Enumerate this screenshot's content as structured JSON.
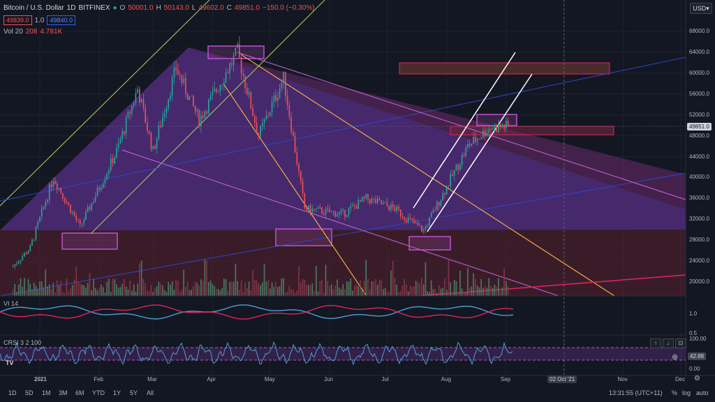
{
  "header": {
    "symbol": "Bitcoin / U.S. Dollar",
    "interval": "1D",
    "exchange": "BITFINEX",
    "open_label": "O",
    "open": "50001.0",
    "high_label": "H",
    "high": "50143.0",
    "low_label": "L",
    "low": "49602.0",
    "close_label": "C",
    "close": "49851.0",
    "change": "−150.0 (−0.30%)",
    "bid": "49839.0",
    "spread": "1.0",
    "ask": "49840.0",
    "vol_label": "Vol 20",
    "vol_value_1": "208",
    "vol_value_2": "4.781K",
    "currency": "USD"
  },
  "price_badge": "49851.0",
  "vi": {
    "label": "VI 14",
    "ticks": [
      "1.0",
      "0.5"
    ]
  },
  "crsi": {
    "label": "CRSI 3 2 100",
    "value": "42.88",
    "ticks": [
      "100.00",
      "0.00"
    ]
  },
  "controls": {
    "up": "↑",
    "down": "↓",
    "expand": "⊡"
  },
  "date_badge": "02 Oct '21",
  "timeframes": [
    "1D",
    "5D",
    "1M",
    "3M",
    "6M",
    "YTD",
    "1Y",
    "5Y",
    "All"
  ],
  "footer": {
    "time": "13:31:55 (UTC+11)",
    "percent": "%",
    "log": "log",
    "auto": "auto"
  },
  "chart_data": {
    "type": "candlestick",
    "symbol": "BTCUSD",
    "interval": "1D",
    "y_scale": "linear",
    "y_ticks": [
      20000,
      24000,
      28000,
      32000,
      36000,
      40000,
      44000,
      48000,
      52000,
      56000,
      60000,
      64000,
      68000
    ],
    "x_ticks": [
      "2021",
      "Feb",
      "Mar",
      "Apr",
      "May",
      "Jun",
      "Jul",
      "Aug",
      "Sep",
      "Oct",
      "Nov",
      "Dec"
    ],
    "x_tick_dates": [
      "2021-01-01",
      "2021-02-01",
      "2021-03-01",
      "2021-04-01",
      "2021-05-01",
      "2021-06-01",
      "2021-07-01",
      "2021-08-01",
      "2021-09-01",
      "2021-10-01",
      "2021-11-01",
      "2021-12-01"
    ],
    "price_path": [
      {
        "date": "2020-12-18",
        "price": 23000
      },
      {
        "date": "2020-12-27",
        "price": 26500
      },
      {
        "date": "2021-01-08",
        "price": 40000
      },
      {
        "date": "2021-01-22",
        "price": 30500
      },
      {
        "date": "2021-02-10",
        "price": 45000
      },
      {
        "date": "2021-02-21",
        "price": 57000
      },
      {
        "date": "2021-03-01",
        "price": 45000
      },
      {
        "date": "2021-03-13",
        "price": 61000
      },
      {
        "date": "2021-03-25",
        "price": 51000
      },
      {
        "date": "2021-04-14",
        "price": 64000
      },
      {
        "date": "2021-04-25",
        "price": 48000
      },
      {
        "date": "2021-05-08",
        "price": 59000
      },
      {
        "date": "2021-05-19",
        "price": 34000
      },
      {
        "date": "2021-06-08",
        "price": 33000
      },
      {
        "date": "2021-06-20",
        "price": 36000
      },
      {
        "date": "2021-07-05",
        "price": 34000
      },
      {
        "date": "2021-07-20",
        "price": 29800
      },
      {
        "date": "2021-08-12",
        "price": 46000
      },
      {
        "date": "2021-08-23",
        "price": 49500
      },
      {
        "date": "2021-09-02",
        "price": 49851
      }
    ],
    "vi_series": [
      {
        "name": "VI+",
        "color": "#4e9ed8"
      },
      {
        "name": "VI-",
        "color": "#e0245e"
      }
    ],
    "crsi_series": [
      {
        "name": "CRSI",
        "color": "#4e9ed8",
        "last": 42.88
      }
    ]
  }
}
